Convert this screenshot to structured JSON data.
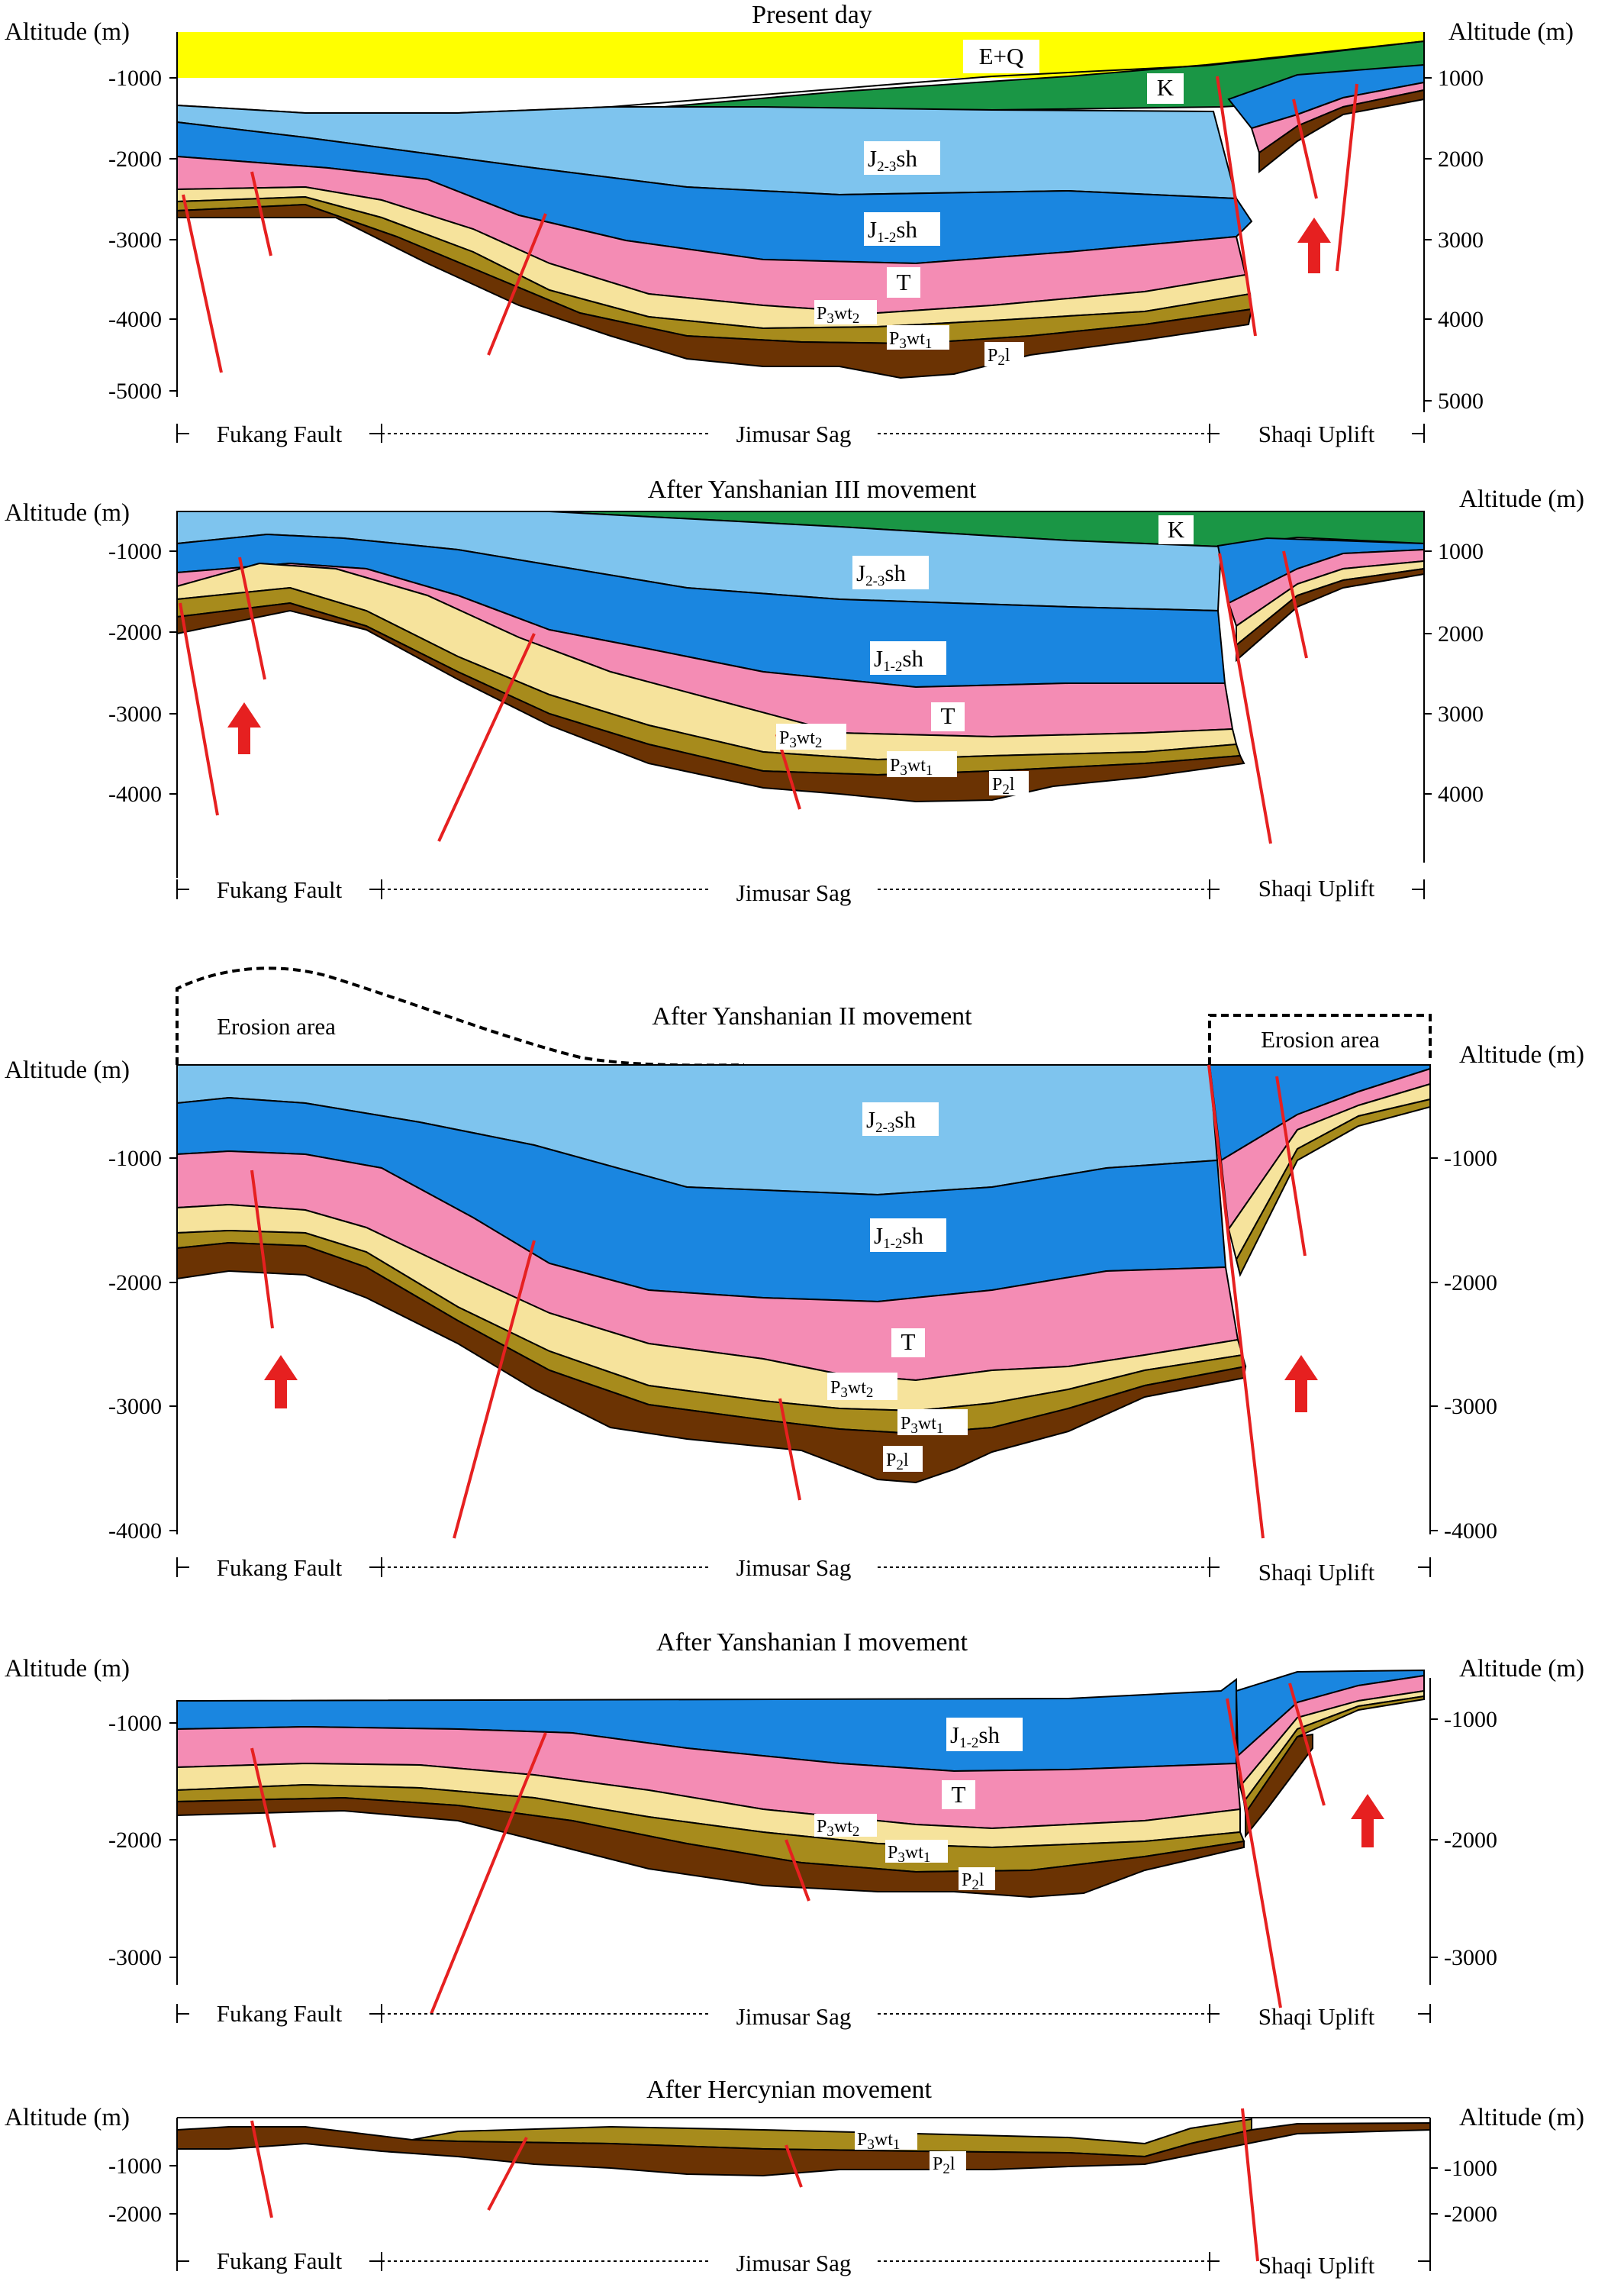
{
  "colors": {
    "EQ": "#ffff00",
    "K": "#1a9645",
    "J23sh": "#7ec4ee",
    "J12sh": "#1a86e0",
    "T": "#f48cb4",
    "P3wt2": "#f6e39c",
    "P3wt1": "#a78b1c",
    "P2l": "#6b3303",
    "fault": "#e62020",
    "arrow": "#e62020"
  },
  "axis_label_left": "Altitude (m)",
  "axis_label_right": "Altitude (m)",
  "regions": {
    "fukang": "Fukang Fault",
    "jimusar": "Jimusar Sag",
    "shaqi": "Shaqi Uplift"
  },
  "erosion_label": "Erosion area",
  "layers": {
    "EQ": "E+Q",
    "K": "K",
    "J23_base": "J",
    "J23_sub": "2-3",
    "J12_base": "J",
    "J12_sub": "1-2",
    "sh": "sh",
    "T": "T",
    "P_base": "P",
    "P3_sub": "3",
    "P2_sub": "2",
    "wt": "wt",
    "wt2_sub": "2",
    "wt1_sub": "1",
    "l": "l"
  },
  "panels": [
    {
      "title": "Present day",
      "ticks_left": [
        "-1000",
        "-2000",
        "-3000",
        "-4000",
        "-5000"
      ],
      "ticks_right": [
        "1000",
        "2000",
        "3000",
        "4000",
        "5000"
      ]
    },
    {
      "title": "After Yanshanian III movement",
      "ticks_left": [
        "-1000",
        "-2000",
        "-3000",
        "-4000"
      ],
      "ticks_right": [
        "1000",
        "2000",
        "3000",
        "4000"
      ]
    },
    {
      "title": "After Yanshanian II movement",
      "ticks_left": [
        "-1000",
        "-2000",
        "-3000",
        "-4000"
      ],
      "ticks_right": [
        "-1000",
        "-2000",
        "-3000",
        "-4000"
      ]
    },
    {
      "title": "After Yanshanian I movement",
      "ticks_left": [
        "-1000",
        "-2000",
        "-3000"
      ],
      "ticks_right": [
        "-1000",
        "-2000",
        "-3000"
      ]
    },
    {
      "title": "After Hercynian movement",
      "ticks_left": [
        "-1000",
        "-2000"
      ],
      "ticks_right": [
        "-1000",
        "-2000"
      ]
    }
  ]
}
